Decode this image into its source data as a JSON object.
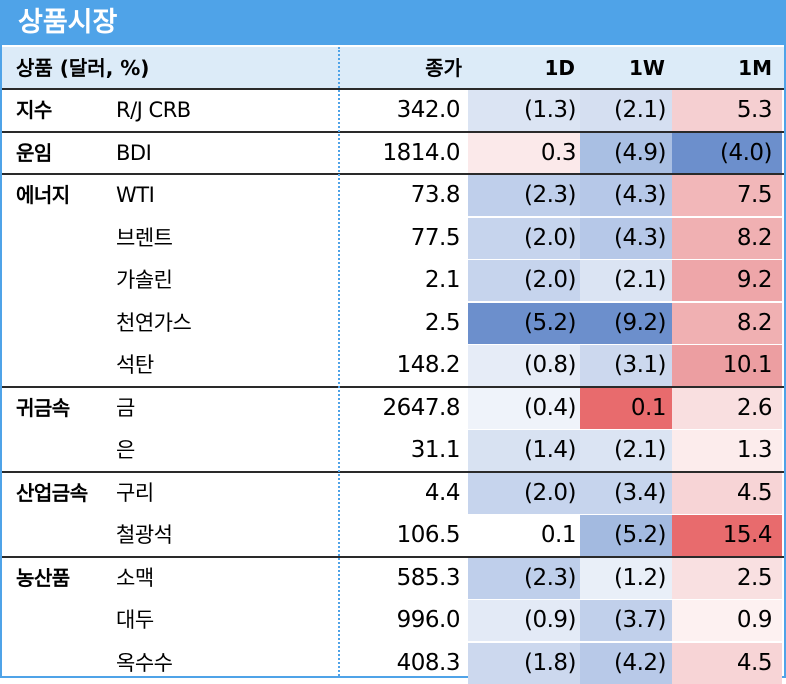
{
  "title": "상품시장",
  "header": {
    "group": "상품 (달러, %)",
    "close": "종가",
    "d1": "1D",
    "w1": "1W",
    "m1": "1M"
  },
  "rows": [
    {
      "group": "지수",
      "name": "R/J CRB",
      "close": "342.0",
      "d1": "(1.3)",
      "w1": "(2.1)",
      "m1": "5.3",
      "d1_color": "#dbe4f3",
      "w1_color": "#d5dff1",
      "m1_color": "#f5cfd1"
    },
    {
      "group": "운임",
      "name": "BDI",
      "close": "1814.0",
      "d1": "0.3",
      "w1": "(4.9)",
      "m1": "(4.0)",
      "d1_color": "#fbe9ea",
      "w1_color": "#a9bfe3",
      "m1_color": "#6c8fcc"
    },
    {
      "group": "에너지",
      "name": "WTI",
      "close": "73.8",
      "d1": "(2.3)",
      "w1": "(4.3)",
      "m1": "7.5",
      "d1_color": "#bfcfeb",
      "w1_color": "#b6c8e8",
      "m1_color": "#f2b7b9"
    },
    {
      "group": "",
      "name": "브렌트",
      "close": "77.5",
      "d1": "(2.0)",
      "w1": "(4.3)",
      "m1": "8.2",
      "d1_color": "#c6d4ed",
      "w1_color": "#b6c8e8",
      "m1_color": "#f0b0b2"
    },
    {
      "group": "",
      "name": "가솔린",
      "close": "2.1",
      "d1": "(2.0)",
      "w1": "(2.1)",
      "m1": "9.2",
      "d1_color": "#c6d4ed",
      "w1_color": "#dbe4f3",
      "m1_color": "#eea6a9"
    },
    {
      "group": "",
      "name": "천연가스",
      "close": "2.5",
      "d1": "(5.2)",
      "w1": "(9.2)",
      "m1": "8.2",
      "d1_color": "#6c8fcc",
      "w1_color": "#6c8fcc",
      "m1_color": "#f0b0b2"
    },
    {
      "group": "",
      "name": "석탄",
      "close": "148.2",
      "d1": "(0.8)",
      "w1": "(3.1)",
      "m1": "10.1",
      "d1_color": "#e6ecf7",
      "w1_color": "#ccd8ee",
      "m1_color": "#ec9ea1"
    },
    {
      "group": "귀금속",
      "name": "금",
      "close": "2647.8",
      "d1": "(0.4)",
      "w1": "0.1",
      "m1": "2.6",
      "d1_color": "#eff3fa",
      "w1_color": "#e86b6d",
      "m1_color": "#f9dfe0"
    },
    {
      "group": "",
      "name": "은",
      "close": "31.1",
      "d1": "(1.4)",
      "w1": "(2.1)",
      "m1": "1.3",
      "d1_color": "#d8e2f2",
      "w1_color": "#dbe4f3",
      "m1_color": "#fcecec"
    },
    {
      "group": "산업금속",
      "name": "구리",
      "close": "4.4",
      "d1": "(2.0)",
      "w1": "(3.4)",
      "m1": "4.5",
      "d1_color": "#c6d4ed",
      "w1_color": "#c6d4ed",
      "m1_color": "#f7d4d6"
    },
    {
      "group": "",
      "name": "철광석",
      "close": "106.5",
      "d1": "0.1",
      "w1": "(5.2)",
      "m1": "15.4",
      "d1_color": "#ffffff",
      "w1_color": "#a3bae0",
      "m1_color": "#e86b6d"
    },
    {
      "group": "농산품",
      "name": "소맥",
      "close": "585.3",
      "d1": "(2.3)",
      "w1": "(1.2)",
      "m1": "2.5",
      "d1_color": "#bfcfeb",
      "w1_color": "#e9eff8",
      "m1_color": "#f9e0e1"
    },
    {
      "group": "",
      "name": "대두",
      "close": "996.0",
      "d1": "(0.9)",
      "w1": "(3.7)",
      "m1": "0.9",
      "d1_color": "#e3eaf6",
      "w1_color": "#c1d0eb",
      "m1_color": "#fdf1f1"
    },
    {
      "group": "",
      "name": "옥수수",
      "close": "408.3",
      "d1": "(1.8)",
      "w1": "(4.2)",
      "m1": "4.5",
      "d1_color": "#ccd8ee",
      "w1_color": "#b8c9e8",
      "m1_color": "#f7d4d6"
    }
  ]
}
